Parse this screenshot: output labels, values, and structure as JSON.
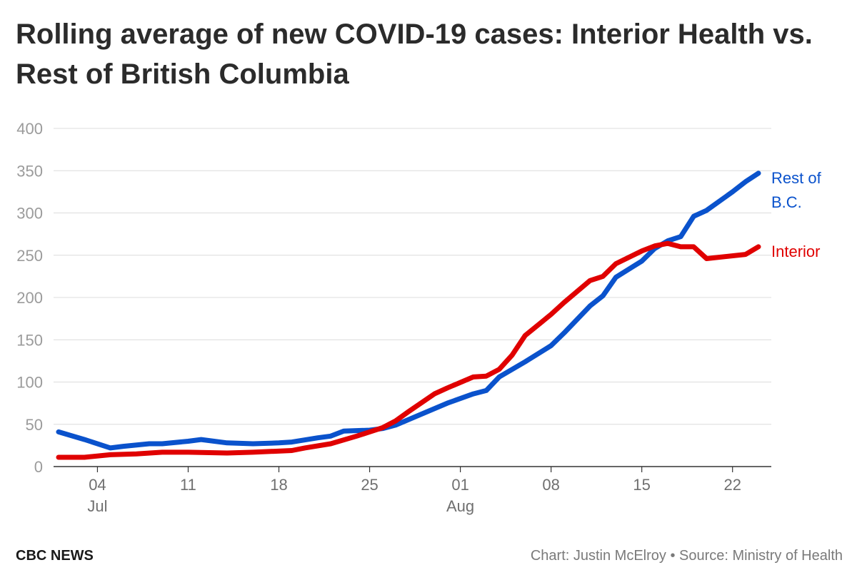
{
  "chart_data": {
    "type": "line",
    "title": "Rolling average of new COVID-19 cases: Interior Health vs. Rest of British Columbia",
    "x_start": "2021-07-01",
    "x_end": "2021-08-24",
    "ylim": [
      0,
      400
    ],
    "yticks": [
      0,
      50,
      100,
      150,
      200,
      250,
      300,
      350,
      400
    ],
    "xticks": [
      {
        "date": "2021-07-04",
        "label": "04",
        "sublabel": "Jul"
      },
      {
        "date": "2021-07-11",
        "label": "11",
        "sublabel": ""
      },
      {
        "date": "2021-07-18",
        "label": "18",
        "sublabel": ""
      },
      {
        "date": "2021-07-25",
        "label": "25",
        "sublabel": ""
      },
      {
        "date": "2021-08-01",
        "label": "01",
        "sublabel": "Aug"
      },
      {
        "date": "2021-08-08",
        "label": "08",
        "sublabel": ""
      },
      {
        "date": "2021-08-15",
        "label": "15",
        "sublabel": ""
      },
      {
        "date": "2021-08-22",
        "label": "22",
        "sublabel": ""
      }
    ],
    "grid": true,
    "legend": "inline-right",
    "series": [
      {
        "name": "Rest of B.C.",
        "label_lines": [
          "Rest of",
          "B.C."
        ],
        "color": "#0a52cc",
        "points": [
          [
            "2021-07-01",
            41
          ],
          [
            "2021-07-03",
            32
          ],
          [
            "2021-07-05",
            22
          ],
          [
            "2021-07-06",
            24
          ],
          [
            "2021-07-08",
            27
          ],
          [
            "2021-07-09",
            27
          ],
          [
            "2021-07-11",
            30
          ],
          [
            "2021-07-12",
            32
          ],
          [
            "2021-07-14",
            28
          ],
          [
            "2021-07-16",
            27
          ],
          [
            "2021-07-18",
            28
          ],
          [
            "2021-07-19",
            29
          ],
          [
            "2021-07-21",
            34
          ],
          [
            "2021-07-22",
            36
          ],
          [
            "2021-07-23",
            42
          ],
          [
            "2021-07-25",
            43
          ],
          [
            "2021-07-26",
            45
          ],
          [
            "2021-07-27",
            49
          ],
          [
            "2021-07-29",
            62
          ],
          [
            "2021-07-31",
            75
          ],
          [
            "2021-08-02",
            86
          ],
          [
            "2021-08-03",
            90
          ],
          [
            "2021-08-04",
            106
          ],
          [
            "2021-08-06",
            124
          ],
          [
            "2021-08-08",
            143
          ],
          [
            "2021-08-09",
            158
          ],
          [
            "2021-08-11",
            190
          ],
          [
            "2021-08-12",
            202
          ],
          [
            "2021-08-13",
            224
          ],
          [
            "2021-08-15",
            243
          ],
          [
            "2021-08-16",
            258
          ],
          [
            "2021-08-17",
            267
          ],
          [
            "2021-08-18",
            272
          ],
          [
            "2021-08-19",
            296
          ],
          [
            "2021-08-20",
            303
          ],
          [
            "2021-08-22",
            325
          ],
          [
            "2021-08-23",
            337
          ],
          [
            "2021-08-24",
            347
          ]
        ]
      },
      {
        "name": "Interior",
        "label_lines": [
          "Interior"
        ],
        "color": "#e00000",
        "points": [
          [
            "2021-07-01",
            11
          ],
          [
            "2021-07-03",
            11
          ],
          [
            "2021-07-05",
            14
          ],
          [
            "2021-07-07",
            15
          ],
          [
            "2021-07-09",
            17
          ],
          [
            "2021-07-11",
            17
          ],
          [
            "2021-07-14",
            16
          ],
          [
            "2021-07-16",
            17
          ],
          [
            "2021-07-19",
            19
          ],
          [
            "2021-07-20",
            22
          ],
          [
            "2021-07-22",
            27
          ],
          [
            "2021-07-24",
            36
          ],
          [
            "2021-07-25",
            41
          ],
          [
            "2021-07-26",
            46
          ],
          [
            "2021-07-27",
            54
          ],
          [
            "2021-07-28",
            65
          ],
          [
            "2021-07-30",
            86
          ],
          [
            "2021-07-31",
            93
          ],
          [
            "2021-08-02",
            106
          ],
          [
            "2021-08-03",
            107
          ],
          [
            "2021-08-04",
            115
          ],
          [
            "2021-08-05",
            132
          ],
          [
            "2021-08-06",
            155
          ],
          [
            "2021-08-08",
            180
          ],
          [
            "2021-08-09",
            194
          ],
          [
            "2021-08-11",
            220
          ],
          [
            "2021-08-12",
            225
          ],
          [
            "2021-08-13",
            240
          ],
          [
            "2021-08-15",
            255
          ],
          [
            "2021-08-16",
            261
          ],
          [
            "2021-08-17",
            264
          ],
          [
            "2021-08-18",
            260
          ],
          [
            "2021-08-19",
            260
          ],
          [
            "2021-08-20",
            246
          ],
          [
            "2021-08-23",
            251
          ],
          [
            "2021-08-24",
            260
          ]
        ]
      }
    ]
  },
  "footer": {
    "brand": "CBC NEWS",
    "credit": "Chart: Justin McElroy • Source: Ministry of Health"
  }
}
